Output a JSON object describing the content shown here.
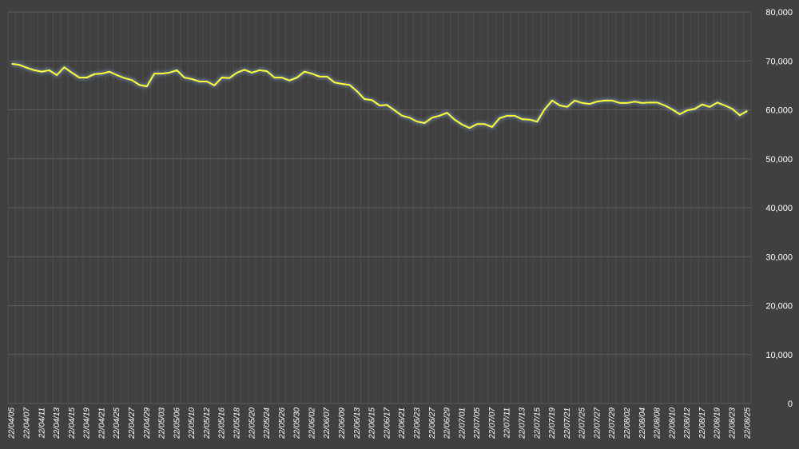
{
  "chart_data": {
    "type": "line",
    "categories": [
      "22/04/05",
      null,
      "22/04/07",
      null,
      "22/04/11",
      null,
      "22/04/13",
      null,
      "22/04/15",
      null,
      "22/04/19",
      null,
      "22/04/21",
      null,
      "22/04/25",
      null,
      "22/04/27",
      null,
      "22/04/29",
      null,
      "22/05/03",
      null,
      "22/05/06",
      null,
      "22/05/10",
      null,
      "22/05/12",
      null,
      "22/05/16",
      null,
      "22/05/18",
      null,
      "22/05/20",
      null,
      "22/05/24",
      null,
      "22/05/26",
      null,
      "22/05/30",
      null,
      "22/06/02",
      null,
      "22/06/07",
      null,
      "22/06/09",
      null,
      "22/06/13",
      null,
      "22/06/15",
      null,
      "22/06/17",
      null,
      "22/06/21",
      null,
      "22/06/23",
      null,
      "22/06/27",
      null,
      "22/06/29",
      null,
      "22/07/01",
      null,
      "22/07/05",
      null,
      "22/07/07",
      null,
      "22/07/11",
      null,
      "22/07/13",
      null,
      "22/07/15",
      null,
      "22/07/19",
      null,
      "22/07/21",
      null,
      "22/07/25",
      null,
      "22/07/27",
      null,
      "22/07/29",
      null,
      "22/08/02",
      null,
      "22/08/04",
      null,
      "22/08/08",
      null,
      "22/08/10",
      null,
      "22/08/12",
      null,
      "22/08/17",
      null,
      "22/08/19",
      null,
      "22/08/23",
      null,
      "22/08/25"
    ],
    "values": [
      69400,
      69200,
      68600,
      68100,
      67800,
      68100,
      67100,
      68700,
      67600,
      66600,
      66600,
      67300,
      67400,
      67800,
      67100,
      66500,
      66100,
      65100,
      64800,
      67400,
      67400,
      67600,
      68100,
      66600,
      66300,
      65800,
      65800,
      65000,
      66600,
      66500,
      67600,
      68200,
      67600,
      68100,
      67900,
      66600,
      66600,
      66000,
      66600,
      67800,
      67400,
      66800,
      66800,
      65600,
      65300,
      65100,
      63800,
      62200,
      62000,
      60900,
      61000,
      59900,
      58800,
      58400,
      57600,
      57300,
      58400,
      58800,
      59400,
      58000,
      57000,
      56300,
      57100,
      57100,
      56500,
      58300,
      58800,
      58800,
      58100,
      58000,
      57600,
      60100,
      61900,
      60900,
      60600,
      61900,
      61400,
      61200,
      61700,
      61900,
      61900,
      61400,
      61400,
      61700,
      61400,
      61500,
      61500,
      60900,
      60100,
      59100,
      59900,
      60200,
      61100,
      60600,
      61500,
      60900,
      60200,
      58900,
      59800
    ],
    "color": "#ffff33",
    "ylim": [
      0,
      80000
    ],
    "yticks": [
      0,
      {
        "value": 10000,
        "label": "10,000"
      },
      {
        "value": 20000,
        "label": "20,000"
      },
      {
        "value": 30000,
        "label": "30,000"
      },
      {
        "value": 40000,
        "label": "40,000"
      },
      {
        "value": 50000,
        "label": "50,000"
      },
      {
        "value": 60000,
        "label": "60,000"
      },
      {
        "value": 70000,
        "label": "70,000"
      },
      {
        "value": 80000,
        "label": "80,000"
      }
    ],
    "grid": true
  }
}
